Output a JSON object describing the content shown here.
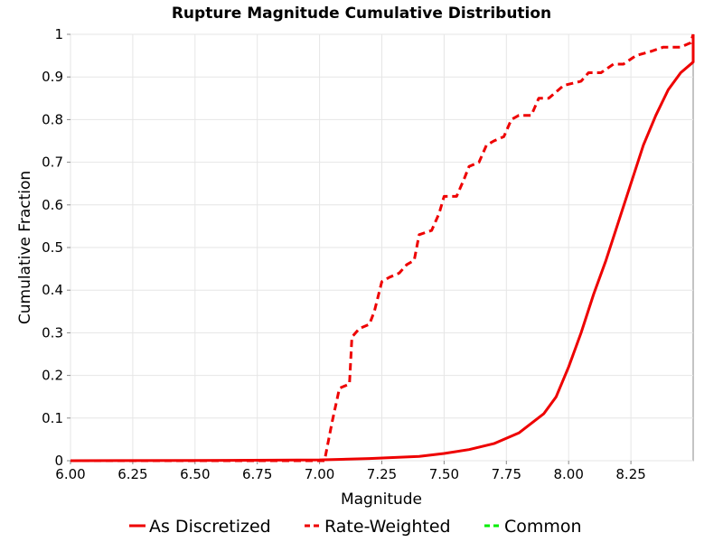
{
  "chart_data": {
    "type": "line",
    "title": "Rupture Magnitude Cumulative Distribution",
    "xlabel": "Magnitude",
    "ylabel": "Cumulative Fraction",
    "xlim": [
      6.0,
      8.5
    ],
    "ylim": [
      0,
      1
    ],
    "xticks": [
      "6.00",
      "6.25",
      "6.50",
      "6.75",
      "7.00",
      "7.25",
      "7.50",
      "7.75",
      "8.00",
      "8.25"
    ],
    "yticks": [
      "0",
      "0.1",
      "0.2",
      "0.3",
      "0.4",
      "0.5",
      "0.6",
      "0.7",
      "0.8",
      "0.9",
      "1"
    ],
    "grid": true,
    "legend_position": "bottom",
    "series": [
      {
        "name": "As Discretized",
        "color": "#ee0000",
        "dash": "solid",
        "points": [
          [
            6.0,
            0.0
          ],
          [
            6.5,
            0.0005
          ],
          [
            7.0,
            0.002
          ],
          [
            7.2,
            0.005
          ],
          [
            7.4,
            0.01
          ],
          [
            7.5,
            0.017
          ],
          [
            7.6,
            0.026
          ],
          [
            7.7,
            0.04
          ],
          [
            7.8,
            0.065
          ],
          [
            7.9,
            0.11
          ],
          [
            7.95,
            0.15
          ],
          [
            8.0,
            0.22
          ],
          [
            8.05,
            0.3
          ],
          [
            8.1,
            0.39
          ],
          [
            8.15,
            0.47
          ],
          [
            8.2,
            0.56
          ],
          [
            8.25,
            0.65
          ],
          [
            8.3,
            0.74
          ],
          [
            8.35,
            0.81
          ],
          [
            8.4,
            0.87
          ],
          [
            8.45,
            0.91
          ],
          [
            8.5,
            0.935
          ],
          [
            8.5,
            1.0
          ]
        ]
      },
      {
        "name": "Rate-Weighted",
        "color": "#ee0000",
        "dash": "dashed",
        "points": [
          [
            6.0,
            0.0
          ],
          [
            7.02,
            0.0
          ],
          [
            7.05,
            0.09
          ],
          [
            7.08,
            0.17
          ],
          [
            7.12,
            0.18
          ],
          [
            7.13,
            0.29
          ],
          [
            7.16,
            0.31
          ],
          [
            7.2,
            0.32
          ],
          [
            7.22,
            0.35
          ],
          [
            7.25,
            0.42
          ],
          [
            7.28,
            0.43
          ],
          [
            7.32,
            0.44
          ],
          [
            7.35,
            0.46
          ],
          [
            7.38,
            0.47
          ],
          [
            7.4,
            0.53
          ],
          [
            7.45,
            0.54
          ],
          [
            7.48,
            0.58
          ],
          [
            7.5,
            0.62
          ],
          [
            7.55,
            0.62
          ],
          [
            7.58,
            0.66
          ],
          [
            7.6,
            0.69
          ],
          [
            7.64,
            0.7
          ],
          [
            7.67,
            0.74
          ],
          [
            7.7,
            0.75
          ],
          [
            7.74,
            0.76
          ],
          [
            7.77,
            0.8
          ],
          [
            7.8,
            0.81
          ],
          [
            7.85,
            0.81
          ],
          [
            7.88,
            0.85
          ],
          [
            7.92,
            0.85
          ],
          [
            7.98,
            0.88
          ],
          [
            8.05,
            0.89
          ],
          [
            8.08,
            0.91
          ],
          [
            8.13,
            0.91
          ],
          [
            8.18,
            0.93
          ],
          [
            8.22,
            0.93
          ],
          [
            8.27,
            0.95
          ],
          [
            8.33,
            0.96
          ],
          [
            8.38,
            0.97
          ],
          [
            8.45,
            0.97
          ],
          [
            8.49,
            0.98
          ],
          [
            8.5,
            1.0
          ]
        ]
      },
      {
        "name": "Common",
        "color": "#00ee00",
        "dash": "dashed",
        "points": []
      }
    ]
  }
}
